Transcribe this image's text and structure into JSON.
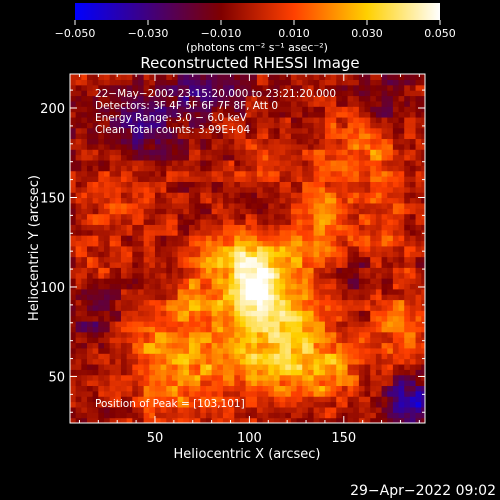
{
  "chart_data": {
    "type": "heatmap",
    "title": "Reconstructed RHESSI Image",
    "xlabel": "Heliocentric X (arcsec)",
    "ylabel": "Heliocentric Y (arcsec)",
    "xlim": [
      5,
      193
    ],
    "ylim": [
      24,
      219
    ],
    "x_ticks": [
      50,
      100,
      150
    ],
    "y_ticks": [
      50,
      100,
      150,
      200
    ],
    "colorbar": {
      "range": [
        -0.05,
        0.05
      ],
      "ticks": [
        -0.05,
        -0.03,
        -0.01,
        0.01,
        0.03,
        0.05
      ],
      "tick_labels": [
        "−0.050",
        "−0.030",
        "−0.010",
        "0.010",
        "0.030",
        "0.050"
      ],
      "unit_label": "(photons cm⁻² s⁻¹ asec⁻²)",
      "colors": [
        "#0000ff",
        "#40007f",
        "#7f0000",
        "#ff4000",
        "#ffd000",
        "#ffffff"
      ]
    },
    "annotations": [
      "22−May−2002 23:15:20.000 to 23:21:20.000",
      "Detectors: 3F 4F 5F 6F 7F 8F, Att 0",
      "Energy Range: 3.0 − 6.0 keV",
      "Clean     Total counts: 3.99E+04"
    ],
    "peak_label": "Position of Peak = [103,101]",
    "peak": {
      "x": 103,
      "y": 101
    },
    "blobs": [
      {
        "x": 103,
        "y": 101,
        "sx": 10,
        "sy": 14,
        "a": 0.05
      },
      {
        "x": 88,
        "y": 118,
        "sx": 14,
        "sy": 10,
        "a": 0.024
      },
      {
        "x": 120,
        "y": 86,
        "sx": 16,
        "sy": 12,
        "a": 0.026
      },
      {
        "x": 100,
        "y": 60,
        "sx": 22,
        "sy": 14,
        "a": 0.024
      },
      {
        "x": 135,
        "y": 56,
        "sx": 18,
        "sy": 14,
        "a": 0.026
      },
      {
        "x": 60,
        "y": 55,
        "sx": 14,
        "sy": 22,
        "a": 0.022
      },
      {
        "x": 75,
        "y": 92,
        "sx": 12,
        "sy": 12,
        "a": 0.018
      },
      {
        "x": 140,
        "y": 140,
        "sx": 10,
        "sy": 16,
        "a": 0.018
      },
      {
        "x": 158,
        "y": 178,
        "sx": 14,
        "sy": 14,
        "a": 0.02
      },
      {
        "x": 170,
        "y": 130,
        "sx": 10,
        "sy": 22,
        "a": 0.014
      },
      {
        "x": 110,
        "y": 170,
        "sx": 12,
        "sy": 10,
        "a": 0.014
      },
      {
        "x": 125,
        "y": 120,
        "sx": 12,
        "sy": 10,
        "a": 0.018
      },
      {
        "x": 30,
        "y": 150,
        "sx": 14,
        "sy": 12,
        "a": 0.012
      },
      {
        "x": 20,
        "y": 115,
        "sx": 8,
        "sy": 12,
        "a": 0.01
      },
      {
        "x": 180,
        "y": 80,
        "sx": 10,
        "sy": 14,
        "a": 0.016
      },
      {
        "x": 40,
        "y": 70,
        "sx": 12,
        "sy": 10,
        "a": 0.012
      },
      {
        "x": 45,
        "y": 190,
        "sx": 16,
        "sy": 12,
        "a": -0.02
      },
      {
        "x": 75,
        "y": 210,
        "sx": 14,
        "sy": 8,
        "a": -0.022
      },
      {
        "x": 185,
        "y": 35,
        "sx": 10,
        "sy": 10,
        "a": -0.035
      },
      {
        "x": 170,
        "y": 200,
        "sx": 10,
        "sy": 10,
        "a": -0.016
      },
      {
        "x": 20,
        "y": 85,
        "sx": 10,
        "sy": 16,
        "a": -0.014
      },
      {
        "x": 160,
        "y": 105,
        "sx": 10,
        "sy": 12,
        "a": -0.012
      }
    ],
    "background_level": -0.004
  },
  "footer": {
    "timestamp": "29−Apr−2022 09:02"
  }
}
